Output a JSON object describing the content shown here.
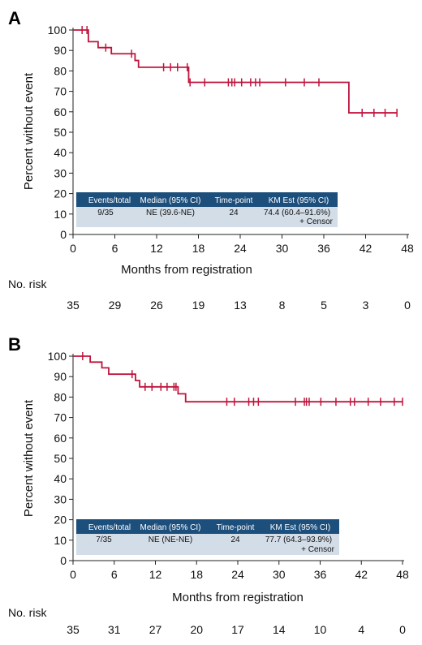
{
  "chart_data": [
    {
      "panel": "A",
      "type": "line",
      "subtype": "kaplan-meier",
      "xlabel": "Months from registration",
      "ylabel": "Percent without event",
      "xlim": [
        0,
        48
      ],
      "ylim": [
        0,
        100
      ],
      "x_ticks": [
        0,
        6,
        12,
        18,
        24,
        30,
        36,
        42,
        48
      ],
      "y_ticks": [
        0,
        10,
        20,
        30,
        40,
        50,
        60,
        70,
        80,
        90,
        100
      ],
      "line_color": "#c0143c",
      "series": [
        {
          "steps": [
            [
              0,
              100
            ],
            [
              2.2,
              94.3
            ],
            [
              3.6,
              91.4
            ],
            [
              5.5,
              88.4
            ],
            [
              8.9,
              85.1
            ],
            [
              9.4,
              81.8
            ],
            [
              16.6,
              74.4
            ],
            [
              39.6,
              59.5
            ],
            [
              46.5,
              59.5
            ]
          ],
          "censors": [
            [
              1.3,
              100
            ],
            [
              2.0,
              100
            ],
            [
              4.7,
              91.4
            ],
            [
              8.4,
              88.4
            ],
            [
              13.0,
              81.8
            ],
            [
              14.0,
              81.8
            ],
            [
              15.0,
              81.8
            ],
            [
              16.4,
              81.8
            ],
            [
              16.8,
              74.4
            ],
            [
              18.9,
              74.4
            ],
            [
              22.3,
              74.4
            ],
            [
              22.8,
              74.4
            ],
            [
              23.2,
              74.4
            ],
            [
              24.2,
              74.4
            ],
            [
              25.5,
              74.4
            ],
            [
              26.2,
              74.4
            ],
            [
              26.8,
              74.4
            ],
            [
              30.5,
              74.4
            ],
            [
              33.2,
              74.4
            ],
            [
              35.3,
              74.4
            ],
            [
              41.5,
              59.5
            ],
            [
              43.2,
              59.5
            ],
            [
              44.8,
              59.5
            ],
            [
              46.5,
              59.5
            ]
          ]
        }
      ],
      "table": {
        "headers": [
          "Events/total",
          "Median (95% CI)",
          "Time-point",
          "KM Est (95% CI)"
        ],
        "row": [
          "9/35",
          "NE (39.6-NE)",
          "24",
          "74.4 (60.4–91.6%)"
        ],
        "censor_label": "+ Censor"
      },
      "risk_label": "No. risk",
      "risk_values": [
        "35",
        "29",
        "26",
        "19",
        "13",
        "8",
        "5",
        "3",
        "0"
      ]
    },
    {
      "panel": "B",
      "type": "line",
      "subtype": "kaplan-meier",
      "xlabel": "Months from registration",
      "ylabel": "Percent without event",
      "xlim": [
        0,
        48
      ],
      "ylim": [
        0,
        100
      ],
      "x_ticks": [
        0,
        6,
        12,
        18,
        24,
        30,
        36,
        42,
        48
      ],
      "y_ticks": [
        0,
        10,
        20,
        30,
        40,
        50,
        60,
        70,
        80,
        90,
        100
      ],
      "line_color": "#c0143c",
      "series": [
        {
          "steps": [
            [
              0,
              100
            ],
            [
              2.5,
              97.1
            ],
            [
              4.2,
              94.3
            ],
            [
              5.2,
              91.2
            ],
            [
              9.1,
              88.1
            ],
            [
              9.7,
              85.0
            ],
            [
              15.3,
              81.6
            ],
            [
              16.4,
              77.7
            ],
            [
              48,
              77.7
            ]
          ],
          "censors": [
            [
              1.4,
              100
            ],
            [
              8.6,
              91.2
            ],
            [
              10.5,
              85.0
            ],
            [
              11.5,
              85.0
            ],
            [
              12.8,
              85.0
            ],
            [
              13.7,
              85.0
            ],
            [
              14.7,
              85.0
            ],
            [
              15.0,
              85.0
            ],
            [
              22.4,
              77.7
            ],
            [
              23.5,
              77.7
            ],
            [
              25.6,
              77.7
            ],
            [
              26.3,
              77.7
            ],
            [
              27.0,
              77.7
            ],
            [
              32.4,
              77.7
            ],
            [
              33.7,
              77.7
            ],
            [
              34.0,
              77.7
            ],
            [
              34.4,
              77.7
            ],
            [
              36.1,
              77.7
            ],
            [
              38.3,
              77.7
            ],
            [
              40.4,
              77.7
            ],
            [
              41.0,
              77.7
            ],
            [
              43.0,
              77.7
            ],
            [
              44.8,
              77.7
            ],
            [
              46.8,
              77.7
            ],
            [
              48.0,
              77.7
            ]
          ]
        }
      ],
      "table": {
        "headers": [
          "Events/total",
          "Median (95% CI)",
          "Time-point",
          "KM Est (95% CI)"
        ],
        "row": [
          "7/35",
          "NE (NE-NE)",
          "24",
          "77.7 (64.3–93.9%)"
        ],
        "censor_label": "+ Censor"
      },
      "risk_label": "No. risk",
      "risk_values": [
        "35",
        "31",
        "27",
        "20",
        "17",
        "14",
        "10",
        "4",
        "0"
      ]
    }
  ],
  "colors": {
    "curve": "#c0143c",
    "table_header": "#1d4f7c",
    "table_body": "#d3dde8"
  }
}
